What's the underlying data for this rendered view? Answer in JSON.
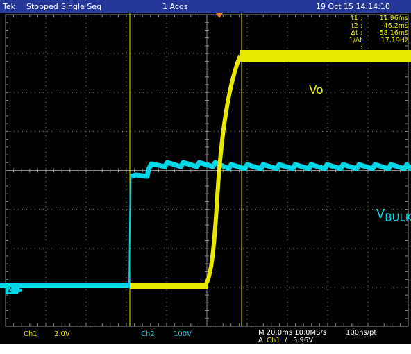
{
  "status_bar": {
    "brand": "Tek",
    "run_state": "Stopped",
    "mode": "Single Seq",
    "acquisitions": "1 Acqs",
    "datetime": "19 Oct 15 14:14:10"
  },
  "cursor_readout": [
    {
      "label": "t1 :",
      "value": "11.96ms"
    },
    {
      "label": "t2 :",
      "value": "-46.2ms"
    },
    {
      "label": "Δt :",
      "value": "-58.16ms"
    },
    {
      "label": "1/Δt :",
      "value": "17.19Hz"
    }
  ],
  "waveform_labels": {
    "vo": "Vo",
    "vbulk_main": "V",
    "vbulk_sub": "BULK"
  },
  "channel_marker": "2",
  "bottom_bar": {
    "ch1_label": "Ch1",
    "ch1_scale": "2.0V",
    "ch2_label": "Ch2",
    "ch2_scale": "100V",
    "timebase": "M 20.0ms 10.0MS/s",
    "record": "100ns/pt",
    "trigger_prefix": "A",
    "trigger_source": "Ch1",
    "trigger_slope": "∕",
    "trigger_level": "5.96V"
  },
  "colors": {
    "background": "#000000",
    "status_bar": "#25389a",
    "ch1": "#e8e800",
    "ch2": "#00d8e8",
    "grid": "#8a8a8a",
    "text": "#ffffff"
  }
}
